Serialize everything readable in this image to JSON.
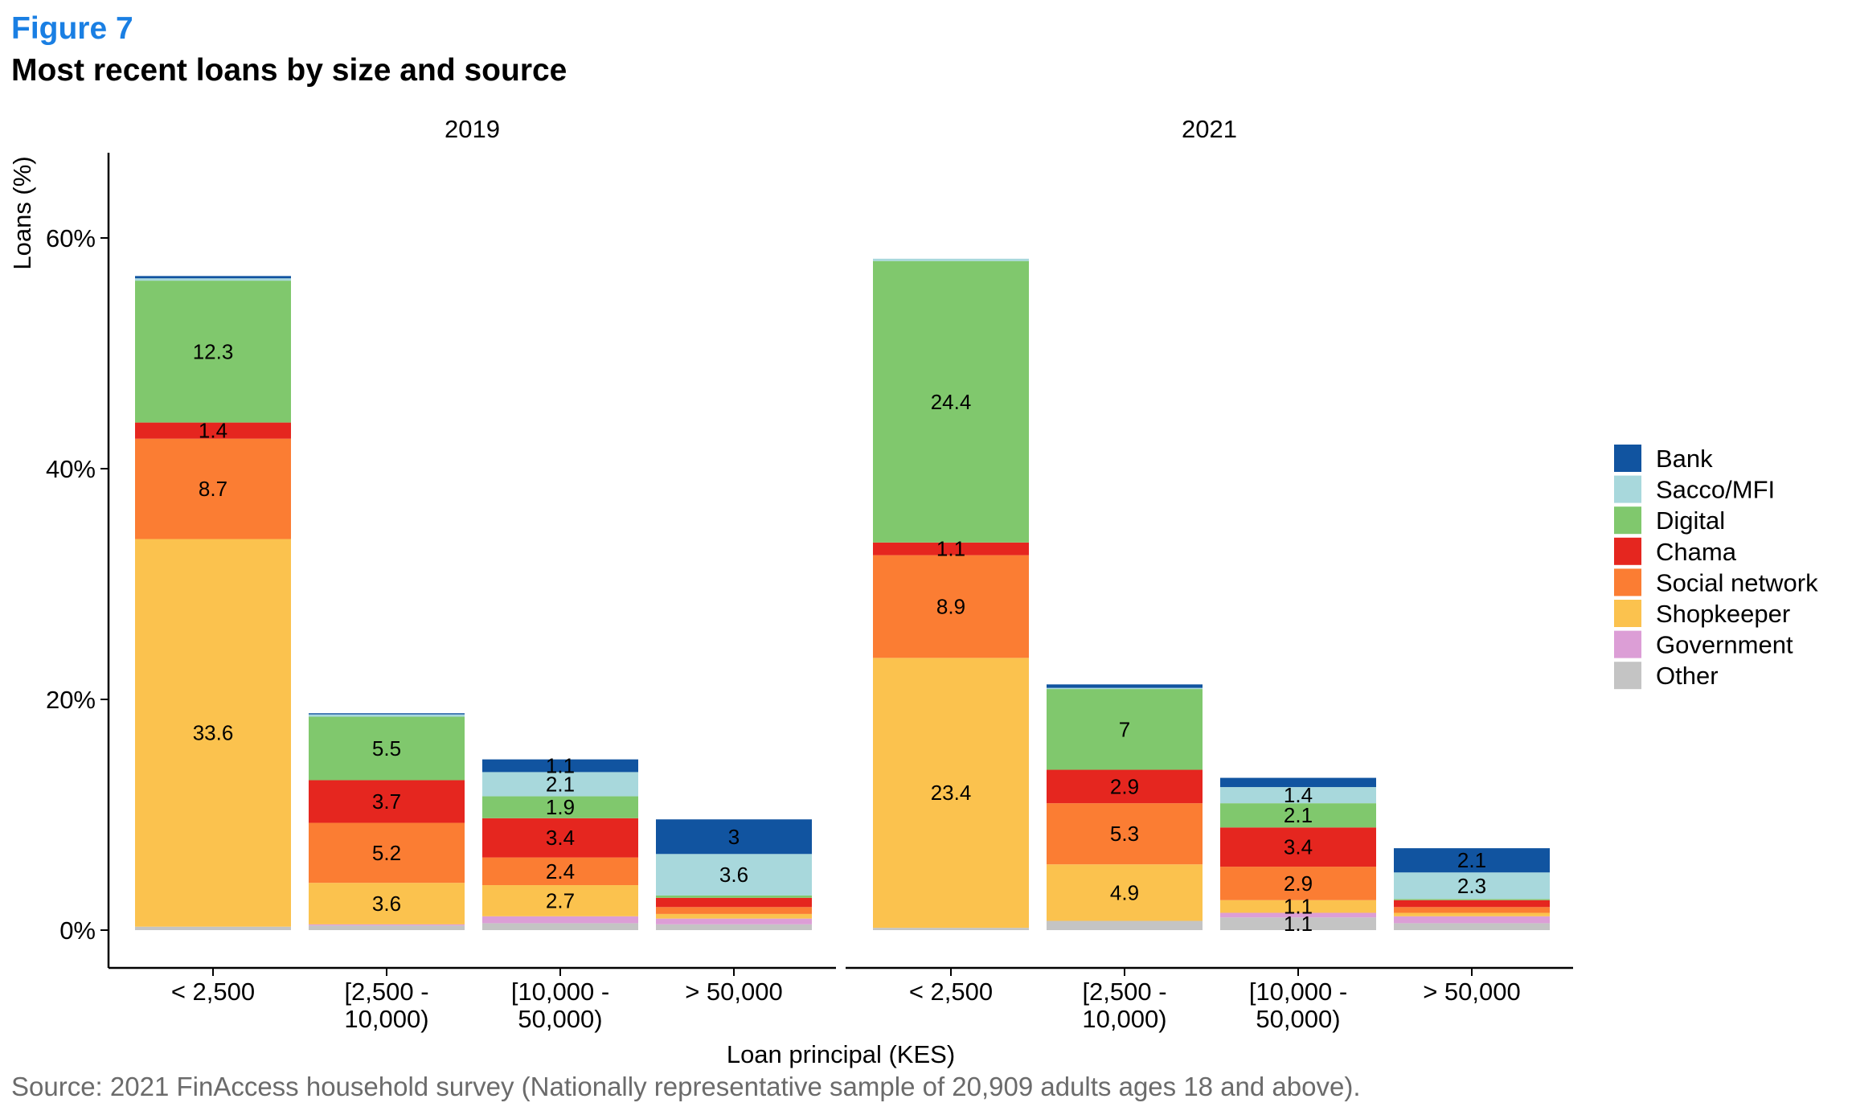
{
  "figure_label": "Figure 7",
  "title": "Most recent loans by size and source",
  "source": "Source: 2021 FinAccess household survey (Nationally representative sample of 20,909 adults ages 18 and above).",
  "chart_data": {
    "type": "bar",
    "stacked": true,
    "facets": [
      "2019",
      "2021"
    ],
    "categories": [
      "< 2,500",
      "[2,500 -\n10,000)",
      "[10,000 -\n50,000)",
      "> 50,000"
    ],
    "xlabel": "Loan principal (KES)",
    "ylabel": "Loans (%)",
    "ylim": [
      0,
      68
    ],
    "yticks": [
      0,
      20,
      40,
      60
    ],
    "ytick_labels": [
      "0%",
      "20%",
      "40%",
      "60%"
    ],
    "grid": false,
    "legend_position": "right",
    "series": [
      {
        "name": "Other",
        "color": "#c4c4c4",
        "values": {
          "2019": [
            0.3,
            0.4,
            0.6,
            0.5
          ],
          "2021": [
            0.2,
            0.8,
            1.1,
            0.6
          ]
        },
        "labels": {
          "2019": [
            "",
            "",
            "",
            ""
          ],
          "2021": [
            "",
            "",
            "1.1",
            ""
          ]
        }
      },
      {
        "name": "Government",
        "color": "#dc9ed6",
        "values": {
          "2019": [
            0.0,
            0.1,
            0.6,
            0.5
          ],
          "2021": [
            0.0,
            0.0,
            0.4,
            0.6
          ]
        },
        "labels": {
          "2019": [
            "",
            "",
            "",
            ""
          ],
          "2021": [
            "",
            "",
            "",
            ""
          ]
        }
      },
      {
        "name": "Shopkeeper",
        "color": "#fbc24e",
        "values": {
          "2019": [
            33.6,
            3.6,
            2.7,
            0.4
          ],
          "2021": [
            23.4,
            4.9,
            1.1,
            0.3
          ]
        },
        "labels": {
          "2019": [
            "33.6",
            "3.6",
            "2.7",
            ""
          ],
          "2021": [
            "23.4",
            "4.9",
            "1.1",
            ""
          ]
        }
      },
      {
        "name": "Social network",
        "color": "#fb7d33",
        "values": {
          "2019": [
            8.7,
            5.2,
            2.4,
            0.6
          ],
          "2021": [
            8.9,
            5.3,
            2.9,
            0.5
          ]
        },
        "labels": {
          "2019": [
            "8.7",
            "5.2",
            "2.4",
            ""
          ],
          "2021": [
            "8.9",
            "5.3",
            "2.9",
            ""
          ]
        }
      },
      {
        "name": "Chama",
        "color": "#e5261f",
        "values": {
          "2019": [
            1.4,
            3.7,
            3.4,
            0.8
          ],
          "2021": [
            1.1,
            2.9,
            3.4,
            0.6
          ]
        },
        "labels": {
          "2019": [
            "1.4",
            "3.7",
            "3.4",
            ""
          ],
          "2021": [
            "1.1",
            "2.9",
            "3.4",
            ""
          ]
        }
      },
      {
        "name": "Digital",
        "color": "#80c86d",
        "values": {
          "2019": [
            12.3,
            5.5,
            1.9,
            0.2
          ],
          "2021": [
            24.4,
            7.0,
            2.1,
            0.1
          ]
        },
        "labels": {
          "2019": [
            "12.3",
            "5.5",
            "1.9",
            ""
          ],
          "2021": [
            "24.4",
            "7",
            "2.1",
            ""
          ]
        }
      },
      {
        "name": "Sacco/MFI",
        "color": "#a8d8dc",
        "values": {
          "2019": [
            0.2,
            0.2,
            2.1,
            3.6
          ],
          "2021": [
            0.2,
            0.1,
            1.4,
            2.3
          ]
        },
        "labels": {
          "2019": [
            "",
            "",
            "2.1",
            "3.6"
          ],
          "2021": [
            "",
            "",
            "1.4",
            "2.3"
          ]
        }
      },
      {
        "name": "Bank",
        "color": "#1154a0",
        "values": {
          "2019": [
            0.2,
            0.1,
            1.1,
            3.0
          ],
          "2021": [
            0.0,
            0.3,
            0.8,
            2.1
          ]
        },
        "labels": {
          "2019": [
            "",
            "",
            "1.1",
            "3"
          ],
          "2021": [
            "",
            "",
            "",
            "2.1"
          ]
        }
      }
    ],
    "legend_order": [
      "Bank",
      "Sacco/MFI",
      "Digital",
      "Chama",
      "Social network",
      "Shopkeeper",
      "Government",
      "Other"
    ]
  }
}
